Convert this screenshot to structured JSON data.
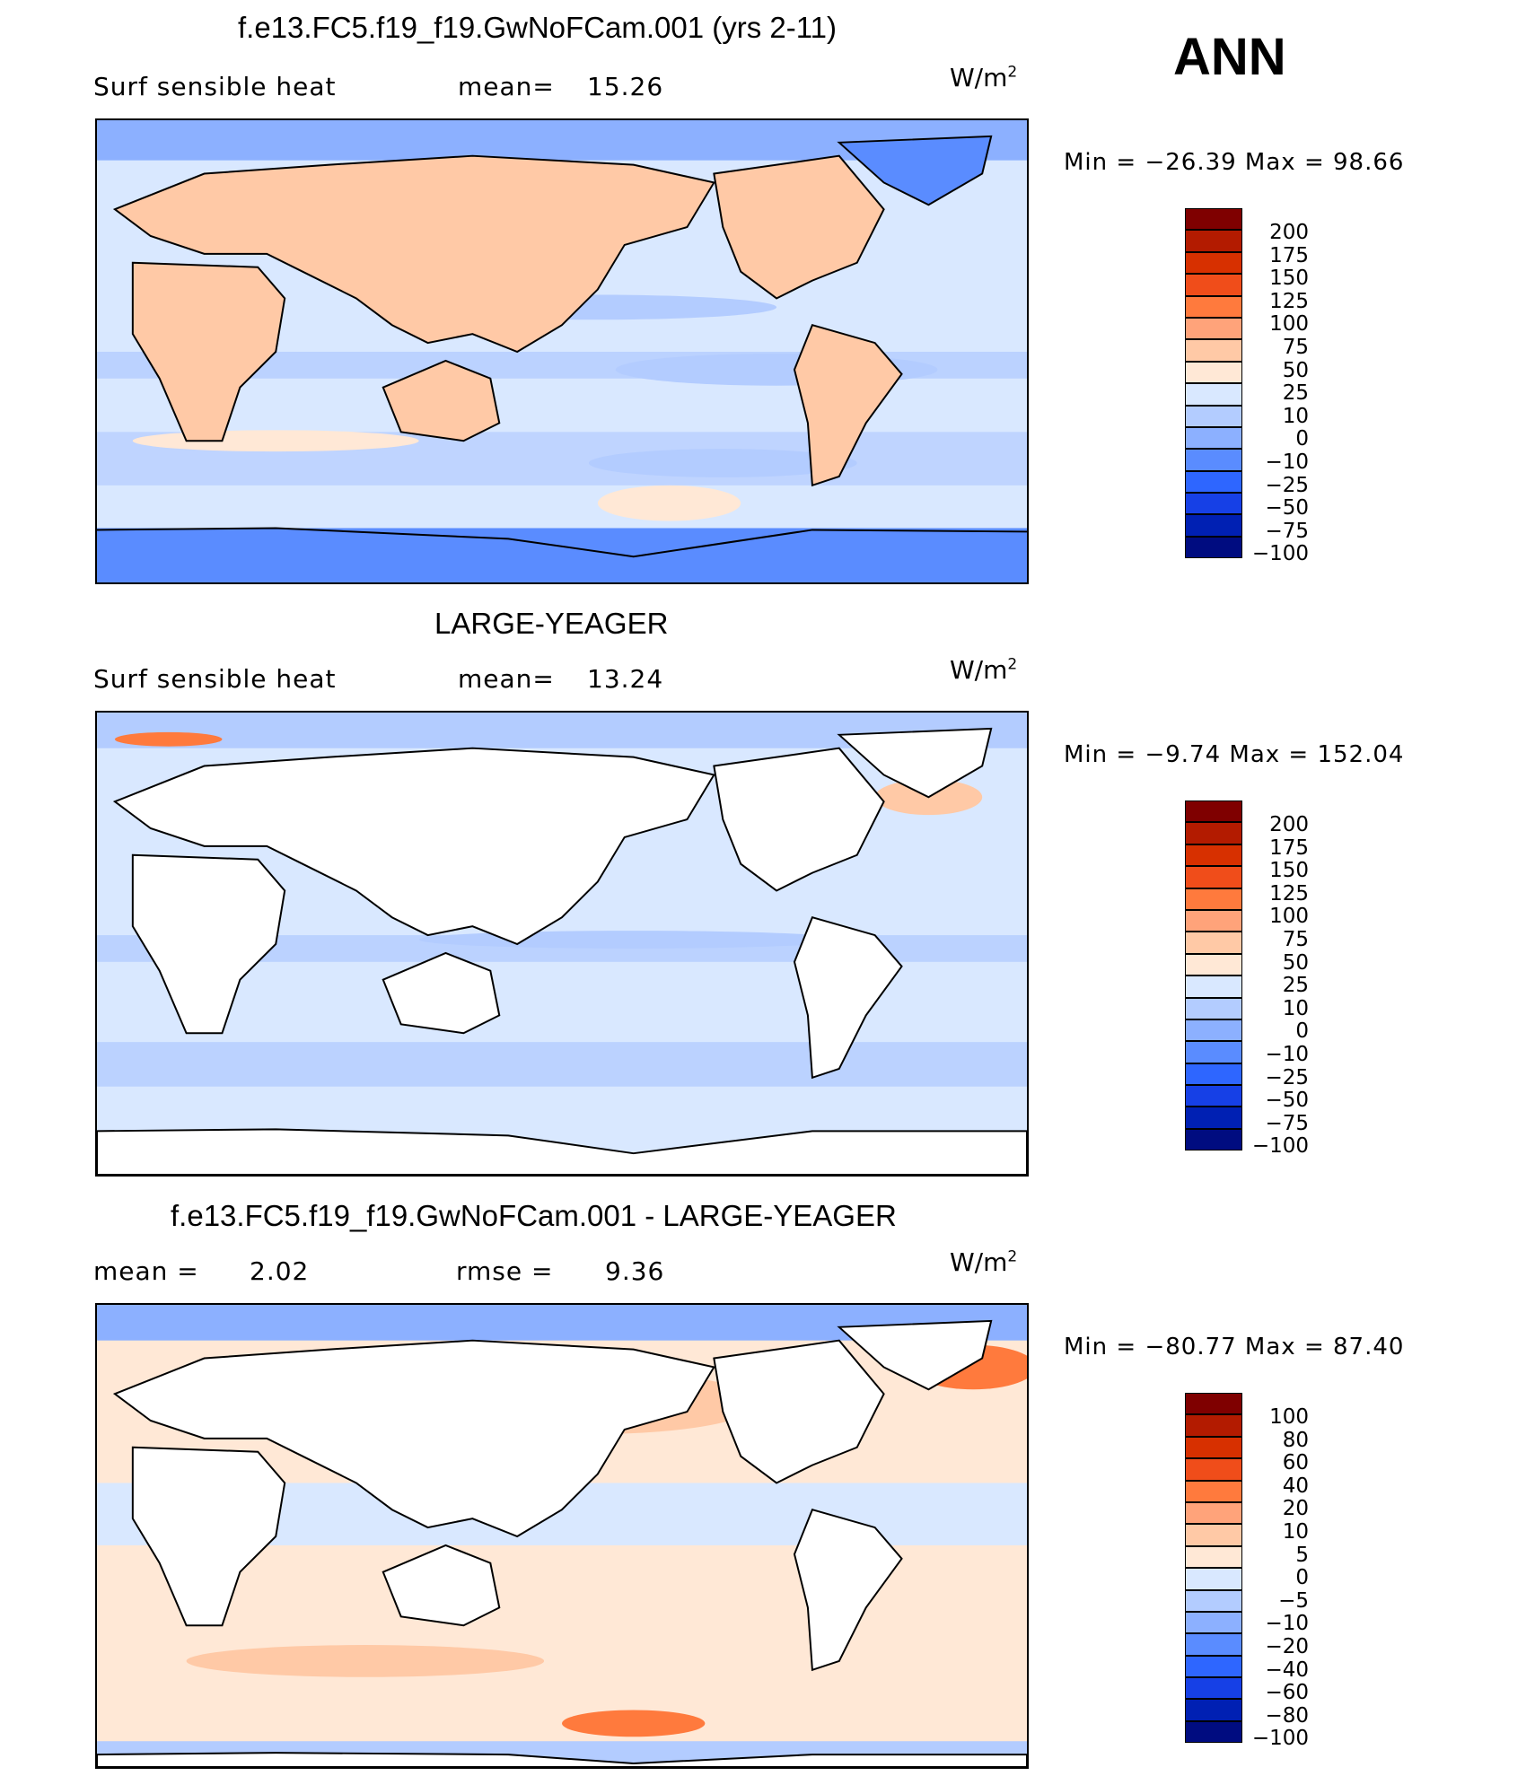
{
  "season": "ANN",
  "units": {
    "text": "W/m",
    "exp": "2"
  },
  "panels": [
    {
      "title": "f.e13.FC5.f19_f19.GwNoFCam.001 (yrs 2-11)",
      "left_label": "Surf  sensible  heat",
      "stat_label": "mean=",
      "stat_value": "15.26",
      "minmax": "Min  =  −26.39  Max  =    98.66",
      "levels": [
        "200",
        "175",
        "150",
        "125",
        "100",
        "75",
        "50",
        "25",
        "10",
        "0",
        "−10",
        "−25",
        "−50",
        "−75",
        "−100"
      ],
      "colors": [
        "#7f0000",
        "#b31b00",
        "#d73000",
        "#f04d1a",
        "#ff7a3d",
        "#ffa37a",
        "#ffc9a6",
        "#ffe8d6",
        "#d9e8ff",
        "#b3ccff",
        "#8cb0ff",
        "#5a8cff",
        "#2e66ff",
        "#1640e6",
        "#0020b3",
        "#000c80"
      ]
    },
    {
      "title": "LARGE-YEAGER",
      "left_label": "Surf  sensible  heat",
      "stat_label": "mean=",
      "stat_value": "13.24",
      "minmax": "Min  =    −9.74  Max  =  152.04",
      "levels": [
        "200",
        "175",
        "150",
        "125",
        "100",
        "75",
        "50",
        "25",
        "10",
        "0",
        "−10",
        "−25",
        "−50",
        "−75",
        "−100"
      ],
      "colors": [
        "#7f0000",
        "#b31b00",
        "#d73000",
        "#f04d1a",
        "#ff7a3d",
        "#ffa37a",
        "#ffc9a6",
        "#ffe8d6",
        "#d9e8ff",
        "#b3ccff",
        "#8cb0ff",
        "#5a8cff",
        "#2e66ff",
        "#1640e6",
        "#0020b3",
        "#000c80"
      ]
    },
    {
      "title": "f.e13.FC5.f19_f19.GwNoFCam.001 - LARGE-YEAGER",
      "left_label": "mean  =",
      "left_value": "2.02",
      "stat_label": "rmse  =",
      "stat_value": "9.36",
      "minmax": "Min  =  −80.77  Max  =    87.40",
      "levels": [
        "100",
        "80",
        "60",
        "40",
        "20",
        "10",
        "5",
        "0",
        "−5",
        "−10",
        "−20",
        "−40",
        "−60",
        "−80",
        "−100"
      ],
      "colors": [
        "#7f0000",
        "#b31b00",
        "#d73000",
        "#f04d1a",
        "#ff7a3d",
        "#ffa37a",
        "#ffc9a6",
        "#ffe8d6",
        "#d9e8ff",
        "#b3ccff",
        "#8cb0ff",
        "#5a8cff",
        "#2e66ff",
        "#1640e6",
        "#0020b3",
        "#000c80"
      ]
    }
  ]
}
